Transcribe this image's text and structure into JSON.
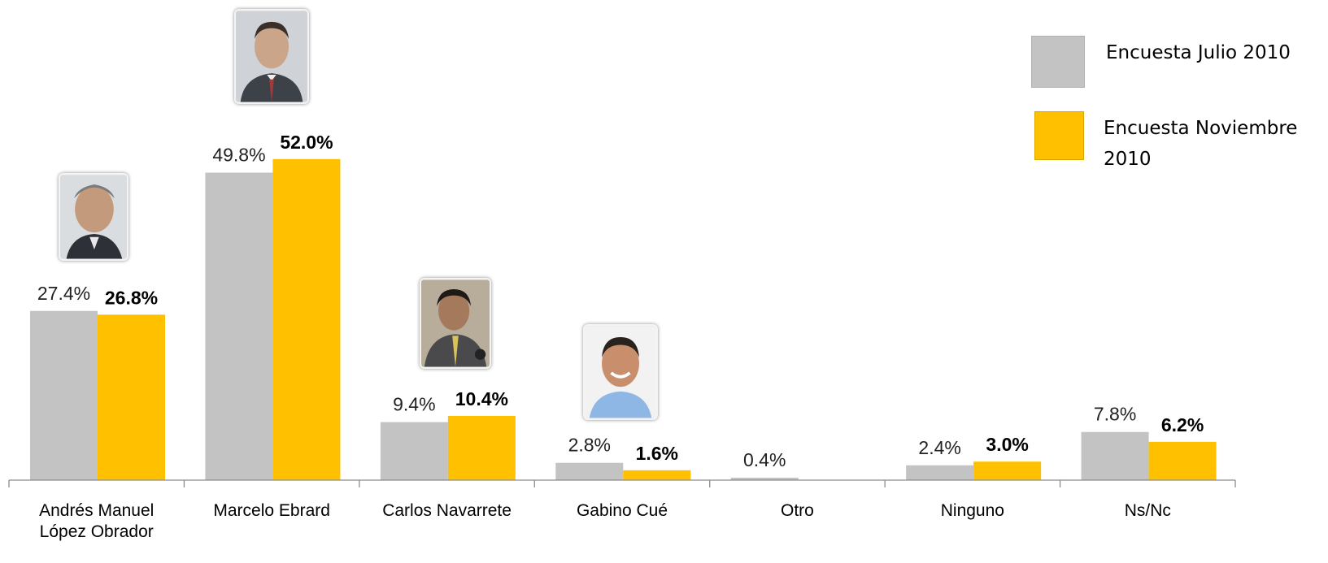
{
  "colors": {
    "julio": "#c3c3c3",
    "noviembre": "#ffc000",
    "axis": "#8c8c8c"
  },
  "legend": {
    "items": [
      {
        "label": "Encuesta Julio 2010",
        "color": "#c3c3c3"
      },
      {
        "label": "Encuesta Noviembre 2010",
        "color": "#ffc000"
      }
    ]
  },
  "photos": [
    {
      "candidate": "Andrés Manuel López Obrador",
      "icon": "candidate-photo-icon"
    },
    {
      "candidate": "Marcelo Ebrard",
      "icon": "candidate-photo-icon"
    },
    {
      "candidate": "Carlos Navarrete",
      "icon": "candidate-photo-icon"
    },
    {
      "candidate": "Gabino Cué",
      "icon": "candidate-photo-icon"
    }
  ],
  "chart_data": {
    "type": "bar",
    "categories": [
      [
        "Andrés Manuel",
        "López Obrador"
      ],
      [
        "Marcelo Ebrard"
      ],
      [
        "Carlos Navarrete"
      ],
      [
        "Gabino Cué"
      ],
      [
        "Otro"
      ],
      [
        "Ninguno"
      ],
      [
        "Ns/Nc"
      ]
    ],
    "series": [
      {
        "name": "Encuesta Julio 2010",
        "color": "#c3c3c3",
        "bold_labels": false,
        "values": [
          27.4,
          49.8,
          9.4,
          2.8,
          0.4,
          2.4,
          7.8
        ],
        "labels": [
          "27.4%",
          "49.8%",
          "9.4%",
          "2.8%",
          "0.4%",
          "2.4%",
          "7.8%"
        ]
      },
      {
        "name": "Encuesta Noviembre 2010",
        "color": "#ffc000",
        "bold_labels": true,
        "values": [
          26.8,
          52.0,
          10.4,
          1.6,
          null,
          3.0,
          6.2
        ],
        "labels": [
          "26.8%",
          "52.0%",
          "10.4%",
          "1.6%",
          "",
          "3.0%",
          "6.2%"
        ]
      }
    ],
    "ylim": [
      0,
      60
    ],
    "grid": false,
    "legend_position": "top-right"
  }
}
